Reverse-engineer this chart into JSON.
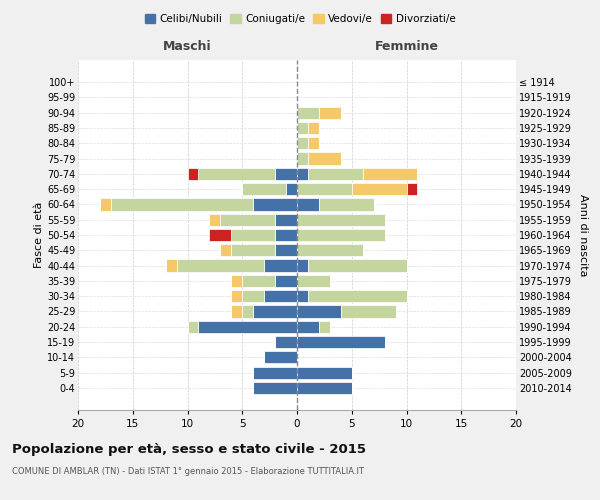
{
  "age_groups": [
    "0-4",
    "5-9",
    "10-14",
    "15-19",
    "20-24",
    "25-29",
    "30-34",
    "35-39",
    "40-44",
    "45-49",
    "50-54",
    "55-59",
    "60-64",
    "65-69",
    "70-74",
    "75-79",
    "80-84",
    "85-89",
    "90-94",
    "95-99",
    "100+"
  ],
  "birth_years": [
    "2010-2014",
    "2005-2009",
    "2000-2004",
    "1995-1999",
    "1990-1994",
    "1985-1989",
    "1980-1984",
    "1975-1979",
    "1970-1974",
    "1965-1969",
    "1960-1964",
    "1955-1959",
    "1950-1954",
    "1945-1949",
    "1940-1944",
    "1935-1939",
    "1930-1934",
    "1925-1929",
    "1920-1924",
    "1915-1919",
    "≤ 1914"
  ],
  "maschi": {
    "celibi": [
      4,
      4,
      3,
      2,
      9,
      4,
      3,
      2,
      3,
      2,
      2,
      2,
      4,
      1,
      2,
      0,
      0,
      0,
      0,
      0,
      0
    ],
    "coniugati": [
      0,
      0,
      0,
      0,
      1,
      1,
      2,
      3,
      8,
      4,
      4,
      5,
      13,
      4,
      7,
      0,
      0,
      0,
      0,
      0,
      0
    ],
    "vedovi": [
      0,
      0,
      0,
      0,
      0,
      1,
      1,
      1,
      1,
      1,
      0,
      1,
      1,
      0,
      0,
      0,
      0,
      0,
      0,
      0,
      0
    ],
    "divorziati": [
      0,
      0,
      0,
      0,
      0,
      0,
      0,
      0,
      0,
      0,
      2,
      0,
      0,
      0,
      1,
      0,
      0,
      0,
      0,
      0,
      0
    ]
  },
  "femmine": {
    "nubili": [
      5,
      5,
      0,
      8,
      2,
      4,
      1,
      0,
      1,
      0,
      0,
      0,
      2,
      0,
      1,
      0,
      0,
      0,
      0,
      0,
      0
    ],
    "coniugate": [
      0,
      0,
      0,
      0,
      1,
      5,
      9,
      3,
      9,
      6,
      8,
      8,
      5,
      5,
      5,
      1,
      1,
      1,
      2,
      0,
      0
    ],
    "vedove": [
      0,
      0,
      0,
      0,
      0,
      0,
      0,
      0,
      0,
      0,
      0,
      0,
      0,
      5,
      5,
      3,
      1,
      1,
      2,
      0,
      0
    ],
    "divorziate": [
      0,
      0,
      0,
      0,
      0,
      0,
      0,
      0,
      0,
      0,
      0,
      0,
      0,
      1,
      0,
      0,
      0,
      0,
      0,
      0,
      0
    ]
  },
  "colors": {
    "celibi": "#4472a8",
    "coniugati": "#c5d5a0",
    "vedovi": "#f5c96a",
    "divorziati": "#cc2222"
  },
  "xlim": [
    -20,
    20
  ],
  "xticks": [
    -20,
    -15,
    -10,
    -5,
    0,
    5,
    10,
    15,
    20
  ],
  "xticklabels": [
    "20",
    "15",
    "10",
    "5",
    "0",
    "5",
    "10",
    "15",
    "20"
  ],
  "title": "Popolazione per età, sesso e stato civile - 2015",
  "subtitle": "COMUNE DI AMBLAR (TN) - Dati ISTAT 1° gennaio 2015 - Elaborazione TUTTITALIA.IT",
  "ylabel_left": "Fasce di età",
  "ylabel_right": "Anni di nascita",
  "maschi_label": "Maschi",
  "femmine_label": "Femmine",
  "legend_labels": [
    "Celibi/Nubili",
    "Coniugati/e",
    "Vedovi/e",
    "Divorziati/e"
  ],
  "bg_color": "#f0f0f0",
  "plot_bg_color": "#ffffff"
}
